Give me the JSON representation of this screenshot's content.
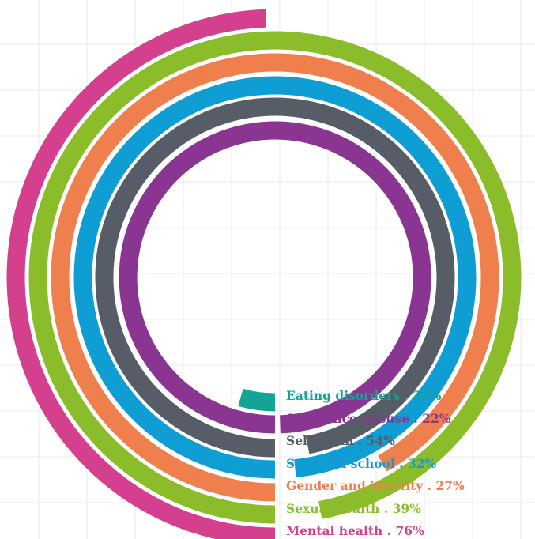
{
  "chart_data": {
    "type": "radial_bar",
    "title": "",
    "series": [
      {
        "label": "Eating disorders . 32%",
        "category": "Eating disorders",
        "value": 32,
        "color": "#13a397"
      },
      {
        "label": "Substance misuse . 22%",
        "category": "Substance misuse",
        "value": 22,
        "color": "#8a3592"
      },
      {
        "label": "Self-harm . 54%",
        "category": "Self-harm",
        "value": 54,
        "color": "#565d66"
      },
      {
        "label": "Stress in school . 32%",
        "category": "Stress in school",
        "value": 32,
        "color": "#0f9ed4"
      },
      {
        "label": "Gender and identity . 27%",
        "category": "Gender and identity",
        "value": 27,
        "color": "#ef7f4d"
      },
      {
        "label": "Sexual health . 39%",
        "category": "Sexual health",
        "value": 39,
        "color": "#8bbc2a"
      },
      {
        "label": "Mental health . 76%",
        "category": "Mental health",
        "value": 76,
        "color": "#d43f8e"
      }
    ],
    "grid": true,
    "label_position": "right of bar ends"
  }
}
